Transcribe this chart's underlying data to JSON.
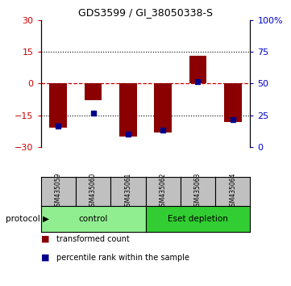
{
  "title": "GDS3599 / GI_38050338-S",
  "samples": [
    "GSM435059",
    "GSM435060",
    "GSM435061",
    "GSM435062",
    "GSM435063",
    "GSM435064"
  ],
  "red_bars": [
    -21,
    -8,
    -25,
    -23,
    13,
    -18
  ],
  "blue_markers": [
    -20,
    -14,
    -24,
    -22,
    1,
    -17
  ],
  "ylim": [
    -30,
    30
  ],
  "yticks": [
    -30,
    -15,
    0,
    15,
    30
  ],
  "y2labels": [
    "0",
    "25",
    "50",
    "75",
    "100%"
  ],
  "group_control_color": "#90EE90",
  "group_eset_color": "#32CD32",
  "sample_box_color": "#C0C0C0",
  "bar_color": "#8B0000",
  "marker_color": "#00008B",
  "bg_color": "#FFFFFF",
  "tick_color_left": "#CC0000",
  "tick_color_right": "#0000CC",
  "hline_color": "#CC0000",
  "dotted_color": "#000000",
  "legend_red_label": "transformed count",
  "legend_blue_label": "percentile rank within the sample"
}
